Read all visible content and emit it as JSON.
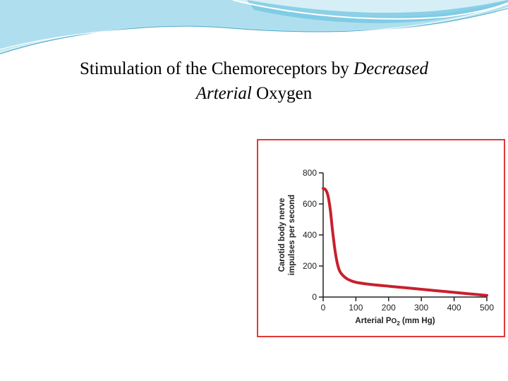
{
  "slide": {
    "title_part1": "Stimulation of the Chemoreceptors by ",
    "title_italic1": "Decreased",
    "title_italic2": "Arterial",
    "title_part2": " Oxygen"
  },
  "colors": {
    "swoosh_light": "#bfe6f2",
    "swoosh_mid": "#5fb9d9",
    "frame": "#e03a3a",
    "curve": "#c8202e",
    "axis": "#222222"
  },
  "chart_data": {
    "type": "line",
    "title": "",
    "ylabel_line1": "Carotid body nerve",
    "ylabel_line2": "impulses per second",
    "xlabel_main": "Arterial P",
    "xlabel_sub_o": "O",
    "xlabel_sub_2": "2",
    "xlabel_unit": " (mm Hg)",
    "xlim": [
      0,
      500
    ],
    "ylim": [
      0,
      800
    ],
    "x_ticks": [
      0,
      100,
      200,
      300,
      400,
      500
    ],
    "y_ticks": [
      0,
      200,
      400,
      600,
      800
    ],
    "grid": false,
    "series": [
      {
        "x": [
          0,
          8,
          15,
          22,
          28,
          35,
          42,
          50,
          60,
          75,
          100,
          150,
          200,
          250,
          300,
          350,
          400,
          450,
          500
        ],
        "y": [
          700,
          690,
          650,
          560,
          440,
          320,
          230,
          170,
          140,
          115,
          95,
          80,
          70,
          60,
          50,
          40,
          30,
          20,
          10
        ]
      }
    ]
  }
}
